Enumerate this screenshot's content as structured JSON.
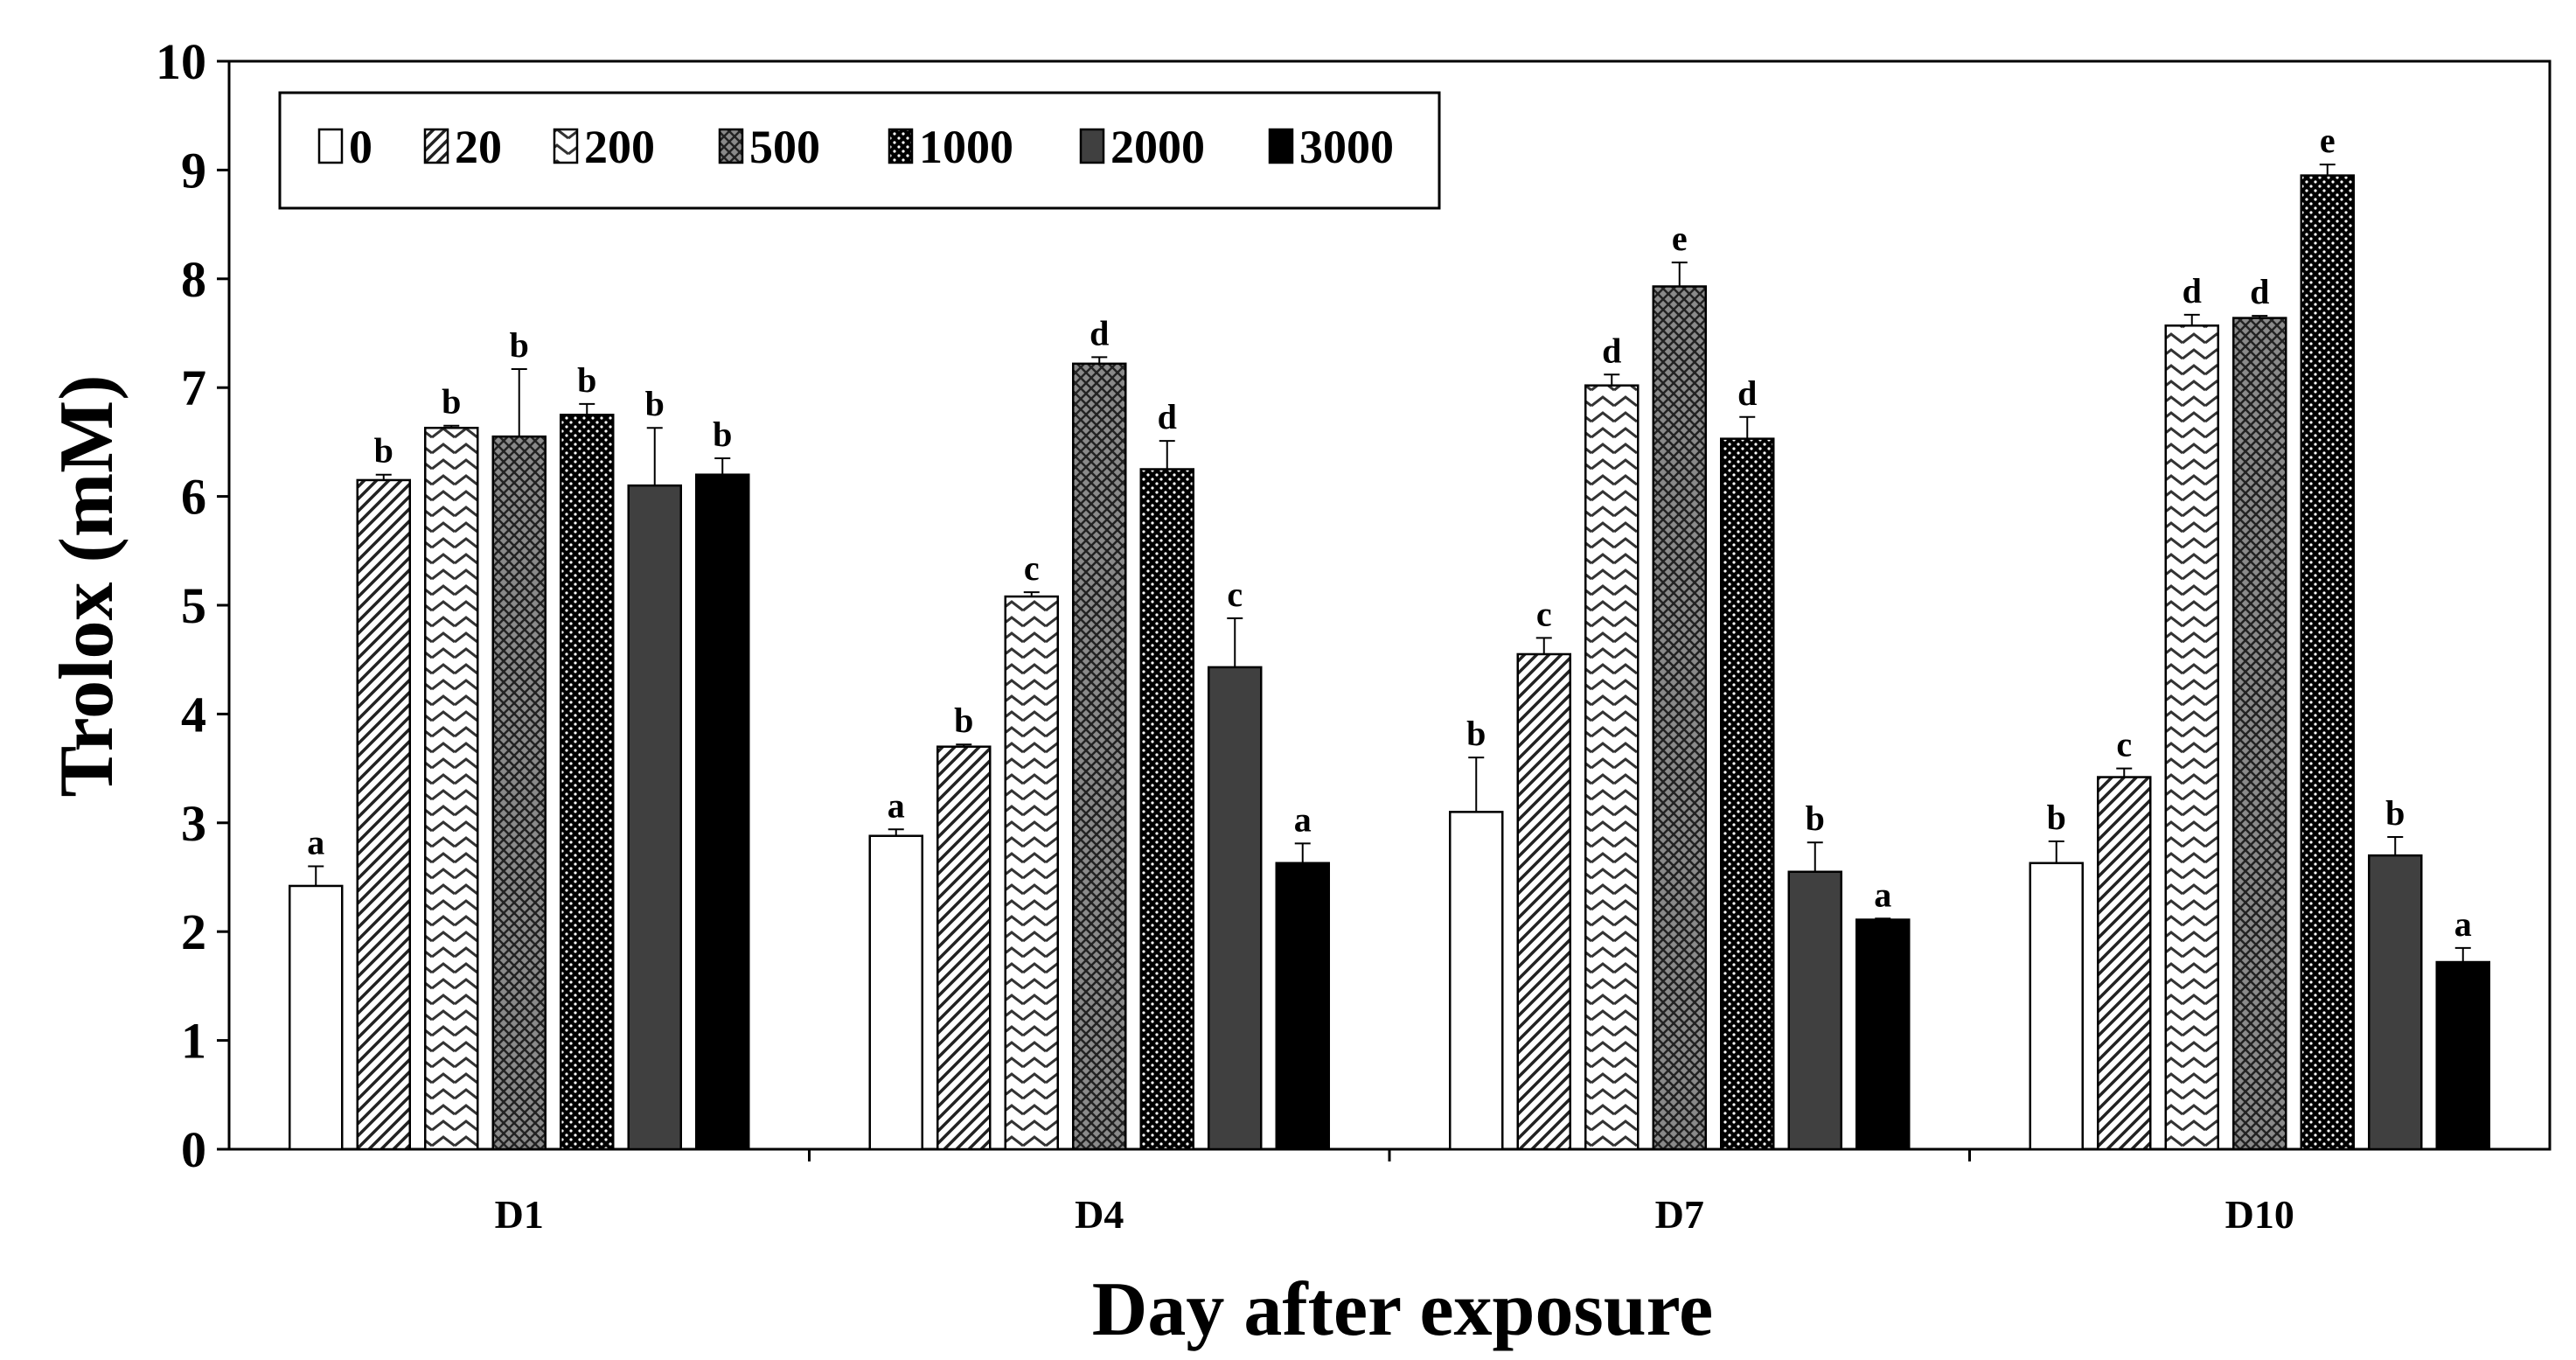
{
  "chart_data": {
    "type": "bar",
    "title": "",
    "xlabel": "Day after exposure",
    "ylabel": "Trolox (mM)",
    "ylim": [
      0,
      10
    ],
    "yticks": [
      "0",
      "1",
      "2",
      "3",
      "4",
      "5",
      "6",
      "7",
      "8",
      "9",
      "10"
    ],
    "categories": [
      "D1",
      "D4",
      "D7",
      "D10"
    ],
    "legend_position": "top-left",
    "series": [
      {
        "name": "0",
        "pattern": "white",
        "values": [
          2.42,
          2.88,
          3.1,
          2.63
        ],
        "errors": [
          0.18,
          0.06,
          0.5,
          0.2
        ],
        "letters": [
          "a",
          "a",
          "b",
          "b"
        ]
      },
      {
        "name": "20",
        "pattern": "diagonal",
        "values": [
          6.15,
          3.7,
          4.55,
          3.42
        ],
        "errors": [
          0.05,
          0.02,
          0.15,
          0.08
        ],
        "letters": [
          "b",
          "b",
          "c",
          "c"
        ]
      },
      {
        "name": "200",
        "pattern": "zigzag",
        "values": [
          6.63,
          5.08,
          7.02,
          7.57
        ],
        "errors": [
          0.02,
          0.04,
          0.1,
          0.1
        ],
        "letters": [
          "b",
          "c",
          "d",
          "d"
        ]
      },
      {
        "name": "500",
        "pattern": "crosshatch",
        "values": [
          6.55,
          7.22,
          7.93,
          7.64
        ],
        "errors": [
          0.62,
          0.06,
          0.22,
          0.02
        ],
        "letters": [
          "b",
          "d",
          "e",
          "d"
        ]
      },
      {
        "name": "1000",
        "pattern": "dots",
        "values": [
          6.75,
          6.25,
          6.53,
          8.95
        ],
        "errors": [
          0.1,
          0.26,
          0.2,
          0.1
        ],
        "letters": [
          "b",
          "d",
          "d",
          "e"
        ]
      },
      {
        "name": "2000",
        "pattern": "darkgray",
        "values": [
          6.1,
          4.43,
          2.55,
          2.7
        ],
        "errors": [
          0.53,
          0.45,
          0.27,
          0.17
        ],
        "letters": [
          "b",
          "c",
          "b",
          "b"
        ]
      },
      {
        "name": "3000",
        "pattern": "black",
        "values": [
          6.2,
          2.63,
          2.11,
          1.72
        ],
        "errors": [
          0.15,
          0.18,
          0.01,
          0.13
        ],
        "letters": [
          "b",
          "a",
          "a",
          "a"
        ]
      }
    ]
  }
}
